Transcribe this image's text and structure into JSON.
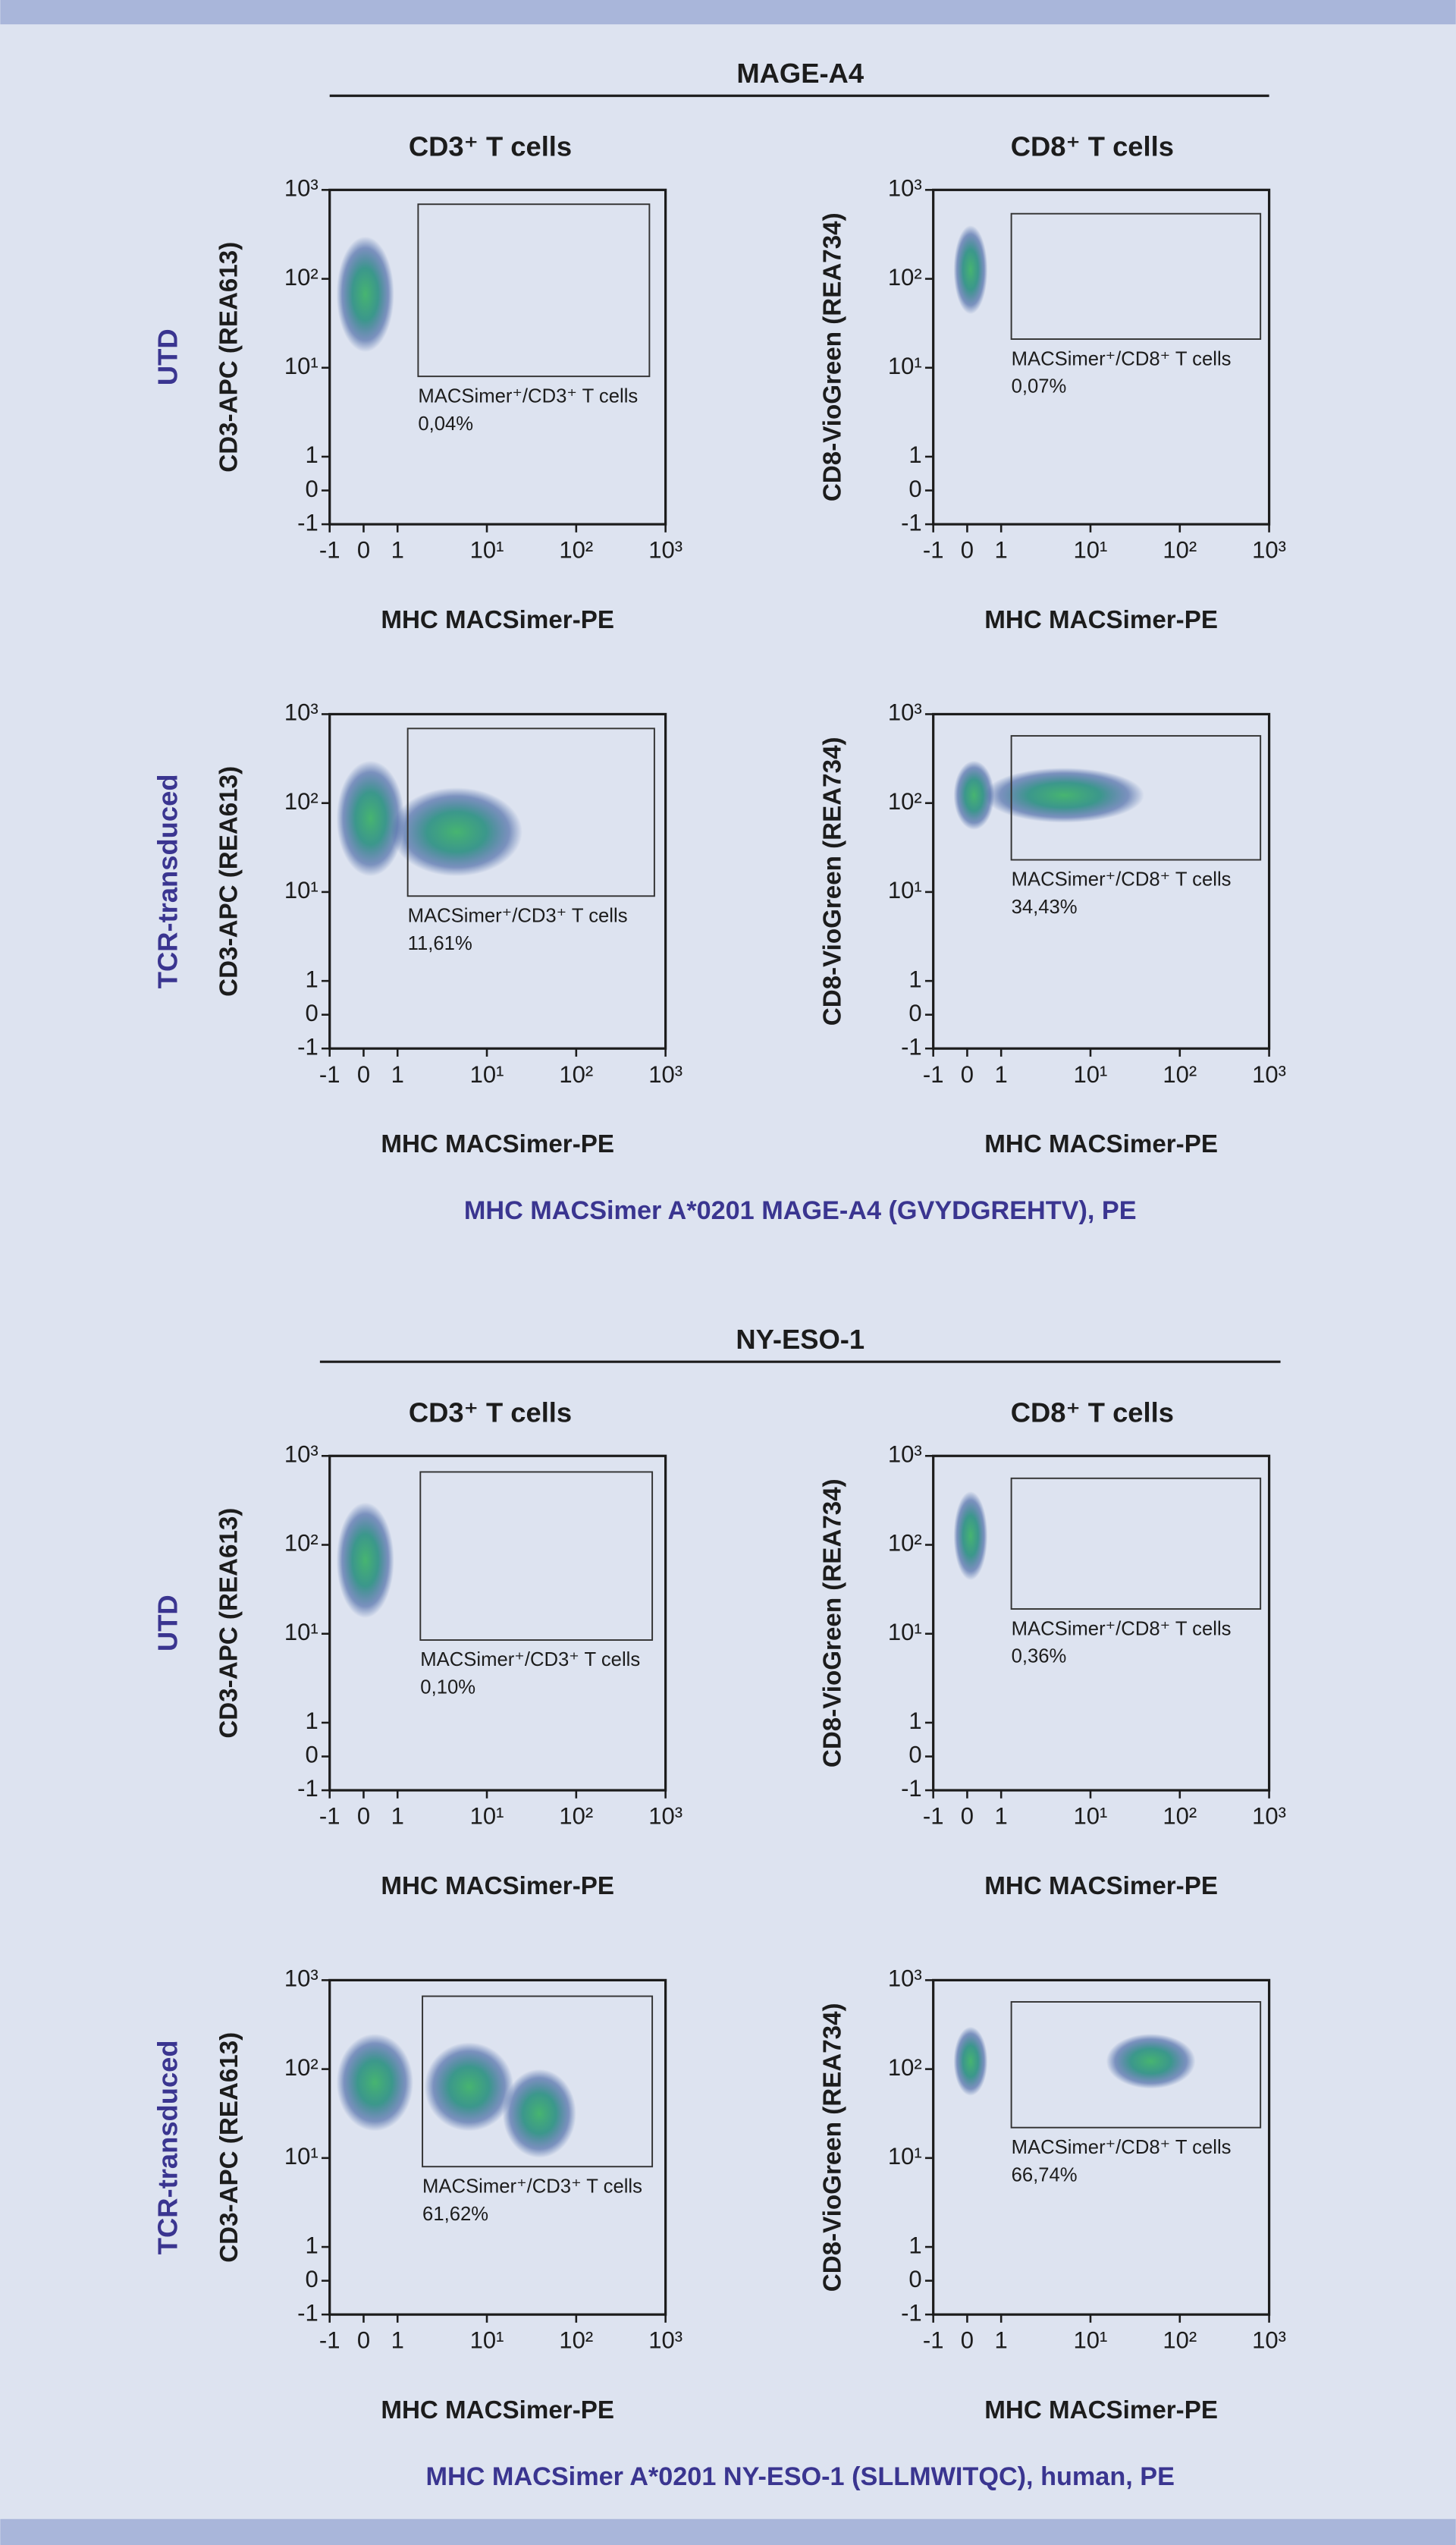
{
  "figure": {
    "sections": [
      {
        "title": "MAGE-A4",
        "columns": [
          "CD3⁺ T cells",
          "CD8⁺ T cells"
        ],
        "rows": [
          "UTD",
          "TCR-transduced"
        ],
        "footer": "MHC MACSimer A*0201 MAGE-A4 (GVYDGREHTV), PE"
      },
      {
        "title": "NY-ESO-1",
        "columns": [
          "CD3⁺ T cells",
          "CD8⁺ T cells"
        ],
        "rows": [
          "UTD",
          "TCR-transduced"
        ],
        "footer": "MHC MACSimer A*0201 NY-ESO-1 (SLLMWITQC), human, PE"
      }
    ]
  },
  "chart_data": [
    {
      "type": "scatter",
      "xlabel": "MHC MACSimer-PE",
      "ylabel": "CD3-APC (REA613)",
      "xlim": [
        -1,
        1000
      ],
      "ylim": [
        -1,
        1000
      ],
      "xticks": [
        -1,
        0,
        1,
        {
          "value": 10,
          "label": "10¹"
        },
        {
          "value": 100,
          "label": "10²"
        },
        {
          "value": 1000,
          "label": "10³"
        }
      ],
      "yticks": [
        -1,
        0,
        1,
        {
          "value": 10,
          "label": "10¹"
        },
        {
          "value": 100,
          "label": "10²"
        },
        {
          "value": 1000,
          "label": "10³"
        }
      ],
      "clusters": [
        {
          "x": [
            -0.8,
            0.9
          ],
          "y": [
            15,
            300
          ]
        }
      ],
      "gate": {
        "x": [
          1.7,
          660
        ],
        "y": [
          8,
          690
        ]
      },
      "gate_label": "MACSimer⁺/CD3⁺ T cells",
      "value": 0.04,
      "value_label": "0,04%"
    },
    {
      "type": "scatter",
      "xlabel": "MHC MACSimer-PE",
      "ylabel": "CD8-VioGreen (REA734)",
      "xlim": [
        -1,
        1000
      ],
      "ylim": [
        -1,
        1000
      ],
      "xticks": [
        -1,
        0,
        1,
        {
          "value": 10,
          "label": "10¹"
        },
        {
          "value": 100,
          "label": "10²"
        },
        {
          "value": 1000,
          "label": "10³"
        }
      ],
      "yticks": [
        -1,
        0,
        1,
        {
          "value": 10,
          "label": "10¹"
        },
        {
          "value": 100,
          "label": "10²"
        },
        {
          "value": 1000,
          "label": "10³"
        }
      ],
      "clusters": [
        {
          "x": [
            -0.4,
            0.6
          ],
          "y": [
            40,
            400
          ]
        }
      ],
      "gate": {
        "x": [
          1.3,
          800
        ],
        "y": [
          21,
          540
        ]
      },
      "gate_label": "MACSimer⁺/CD8⁺ T cells",
      "value": 0.07,
      "value_label": "0,07%"
    },
    {
      "type": "scatter",
      "xlabel": "MHC MACSimer-PE",
      "ylabel": "CD3-APC (REA613)",
      "xlim": [
        -1,
        1000
      ],
      "ylim": [
        -1,
        1000
      ],
      "xticks": [
        -1,
        0,
        1,
        {
          "value": 10,
          "label": "10¹"
        },
        {
          "value": 100,
          "label": "10²"
        },
        {
          "value": 1000,
          "label": "10³"
        }
      ],
      "yticks": [
        -1,
        0,
        1,
        {
          "value": 10,
          "label": "10¹"
        },
        {
          "value": 100,
          "label": "10²"
        },
        {
          "value": 1000,
          "label": "10³"
        }
      ],
      "clusters": [
        {
          "x": [
            0.8,
            25
          ],
          "y": [
            15,
            150
          ]
        },
        {
          "x": [
            -0.8,
            1.2
          ],
          "y": [
            15,
            300
          ]
        }
      ],
      "gate": {
        "x": [
          1.3,
          750
        ],
        "y": [
          9,
          690
        ]
      },
      "gate_label": "MACSimer⁺/CD3⁺ T cells",
      "value": 11.61,
      "value_label": "11,61%"
    },
    {
      "type": "scatter",
      "xlabel": "MHC MACSimer-PE",
      "ylabel": "CD8-VioGreen (REA734)",
      "xlim": [
        -1,
        1000
      ],
      "ylim": [
        -1,
        1000
      ],
      "xticks": [
        -1,
        0,
        1,
        {
          "value": 10,
          "label": "10¹"
        },
        {
          "value": 100,
          "label": "10²"
        },
        {
          "value": 1000,
          "label": "10³"
        }
      ],
      "yticks": [
        -1,
        0,
        1,
        {
          "value": 10,
          "label": "10¹"
        },
        {
          "value": 100,
          "label": "10²"
        },
        {
          "value": 1000,
          "label": "10³"
        }
      ],
      "clusters": [
        {
          "x": [
            0.5,
            40
          ],
          "y": [
            60,
            250
          ]
        },
        {
          "x": [
            -0.4,
            0.8
          ],
          "y": [
            50,
            300
          ]
        }
      ],
      "gate": {
        "x": [
          1.3,
          800
        ],
        "y": [
          23,
          570
        ]
      },
      "gate_label": "MACSimer⁺/CD8⁺ T cells",
      "value": 34.43,
      "value_label": "34,43%"
    },
    {
      "type": "scatter",
      "xlabel": "MHC MACSimer-PE",
      "ylabel": "CD3-APC (REA613)",
      "xlim": [
        -1,
        1000
      ],
      "ylim": [
        -1,
        1000
      ],
      "xticks": [
        -1,
        0,
        1,
        {
          "value": 10,
          "label": "10¹"
        },
        {
          "value": 100,
          "label": "10²"
        },
        {
          "value": 1000,
          "label": "10³"
        }
      ],
      "yticks": [
        -1,
        0,
        1,
        {
          "value": 10,
          "label": "10¹"
        },
        {
          "value": 100,
          "label": "10²"
        },
        {
          "value": 1000,
          "label": "10³"
        }
      ],
      "clusters": [
        {
          "x": [
            -0.8,
            0.9
          ],
          "y": [
            15,
            300
          ]
        }
      ],
      "gate": {
        "x": [
          1.8,
          710
        ],
        "y": [
          8.5,
          660
        ]
      },
      "gate_label": "MACSimer⁺/CD3⁺ T cells",
      "value": 0.1,
      "value_label": "0,10%"
    },
    {
      "type": "scatter",
      "xlabel": "MHC MACSimer-PE",
      "ylabel": "CD8-VioGreen (REA734)",
      "xlim": [
        -1,
        1000
      ],
      "ylim": [
        -1,
        1000
      ],
      "xticks": [
        -1,
        0,
        1,
        {
          "value": 10,
          "label": "10¹"
        },
        {
          "value": 100,
          "label": "10²"
        },
        {
          "value": 1000,
          "label": "10³"
        }
      ],
      "yticks": [
        -1,
        0,
        1,
        {
          "value": 10,
          "label": "10¹"
        },
        {
          "value": 100,
          "label": "10²"
        },
        {
          "value": 1000,
          "label": "10³"
        }
      ],
      "clusters": [
        {
          "x": [
            -0.4,
            0.6
          ],
          "y": [
            40,
            400
          ]
        }
      ],
      "gate": {
        "x": [
          1.3,
          800
        ],
        "y": [
          19,
          560
        ]
      },
      "gate_label": "MACSimer⁺/CD8⁺ T cells",
      "value": 0.36,
      "value_label": "0,36%"
    },
    {
      "type": "scatter",
      "xlabel": "MHC MACSimer-PE",
      "ylabel": "CD3-APC (REA613)",
      "xlim": [
        -1,
        1000
      ],
      "ylim": [
        -1,
        1000
      ],
      "xticks": [
        -1,
        0,
        1,
        {
          "value": 10,
          "label": "10¹"
        },
        {
          "value": 100,
          "label": "10²"
        },
        {
          "value": 1000,
          "label": "10³"
        }
      ],
      "yticks": [
        -1,
        0,
        1,
        {
          "value": 10,
          "label": "10¹"
        },
        {
          "value": 100,
          "label": "10²"
        },
        {
          "value": 1000,
          "label": "10³"
        }
      ],
      "clusters": [
        {
          "x": [
            15,
            100
          ],
          "y": [
            10,
            100
          ]
        },
        {
          "x": [
            2,
            20
          ],
          "y": [
            20,
            200
          ]
        },
        {
          "x": [
            -0.8,
            1.5
          ],
          "y": [
            20,
            250
          ]
        }
      ],
      "gate": {
        "x": [
          1.9,
          710
        ],
        "y": [
          8,
          660
        ]
      },
      "gate_label": "MACSimer⁺/CD3⁺ T cells",
      "value": 61.62,
      "value_label": "61,62%"
    },
    {
      "type": "scatter",
      "xlabel": "MHC MACSimer-PE",
      "ylabel": "CD8-VioGreen (REA734)",
      "xlim": [
        -1,
        1000
      ],
      "ylim": [
        -1,
        1000
      ],
      "xticks": [
        -1,
        0,
        1,
        {
          "value": 10,
          "label": "10¹"
        },
        {
          "value": 100,
          "label": "10²"
        },
        {
          "value": 1000,
          "label": "10³"
        }
      ],
      "yticks": [
        -1,
        0,
        1,
        {
          "value": 10,
          "label": "10¹"
        },
        {
          "value": 100,
          "label": "10²"
        },
        {
          "value": 1000,
          "label": "10³"
        }
      ],
      "clusters": [
        {
          "x": [
            15,
            150
          ],
          "y": [
            60,
            250
          ]
        },
        {
          "x": [
            -0.4,
            0.6
          ],
          "y": [
            50,
            300
          ]
        }
      ],
      "gate": {
        "x": [
          1.3,
          800
        ],
        "y": [
          22,
          570
        ]
      },
      "gate_label": "MACSimer⁺/CD8⁺ T cells",
      "value": 66.74,
      "value_label": "66,74%"
    }
  ]
}
